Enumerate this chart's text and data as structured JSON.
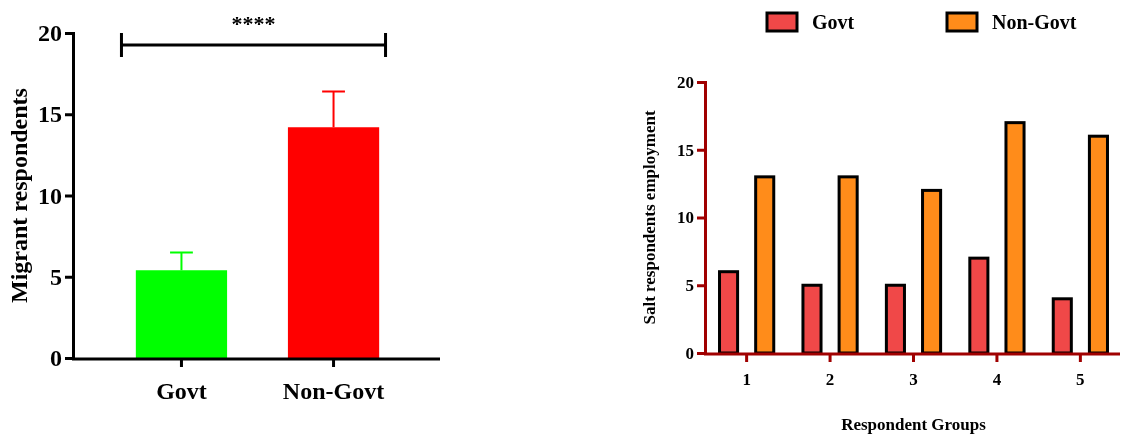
{
  "chart_data": [
    {
      "type": "bar",
      "categories": [
        "Govt",
        "Non-Govt"
      ],
      "values": [
        5.4,
        14.2
      ],
      "colors": [
        "#00ff00",
        "#ff0000"
      ],
      "errors": [
        [
          5.4,
          6.5
        ],
        [
          14.2,
          16.4
        ]
      ],
      "ylim": [
        0,
        20
      ],
      "yticks": [
        0,
        5,
        10,
        15,
        20
      ],
      "ylabel": "Migrant respondents",
      "annotations": [
        "****"
      ]
    },
    {
      "type": "bar",
      "categories": [
        "1",
        "2",
        "3",
        "4",
        "5"
      ],
      "series": [
        {
          "name": "Govt",
          "color": "#f04848",
          "values": [
            6,
            5,
            5,
            7,
            4
          ]
        },
        {
          "name": "Non-Govt",
          "color": "#ff8c1a",
          "values": [
            13,
            13,
            12,
            17,
            16
          ]
        }
      ],
      "ylim": [
        0,
        20
      ],
      "yticks": [
        0,
        5,
        10,
        15,
        20
      ],
      "xlabel": "Respondent Groups",
      "ylabel": "Salt respondents employment",
      "legend": "top"
    }
  ]
}
